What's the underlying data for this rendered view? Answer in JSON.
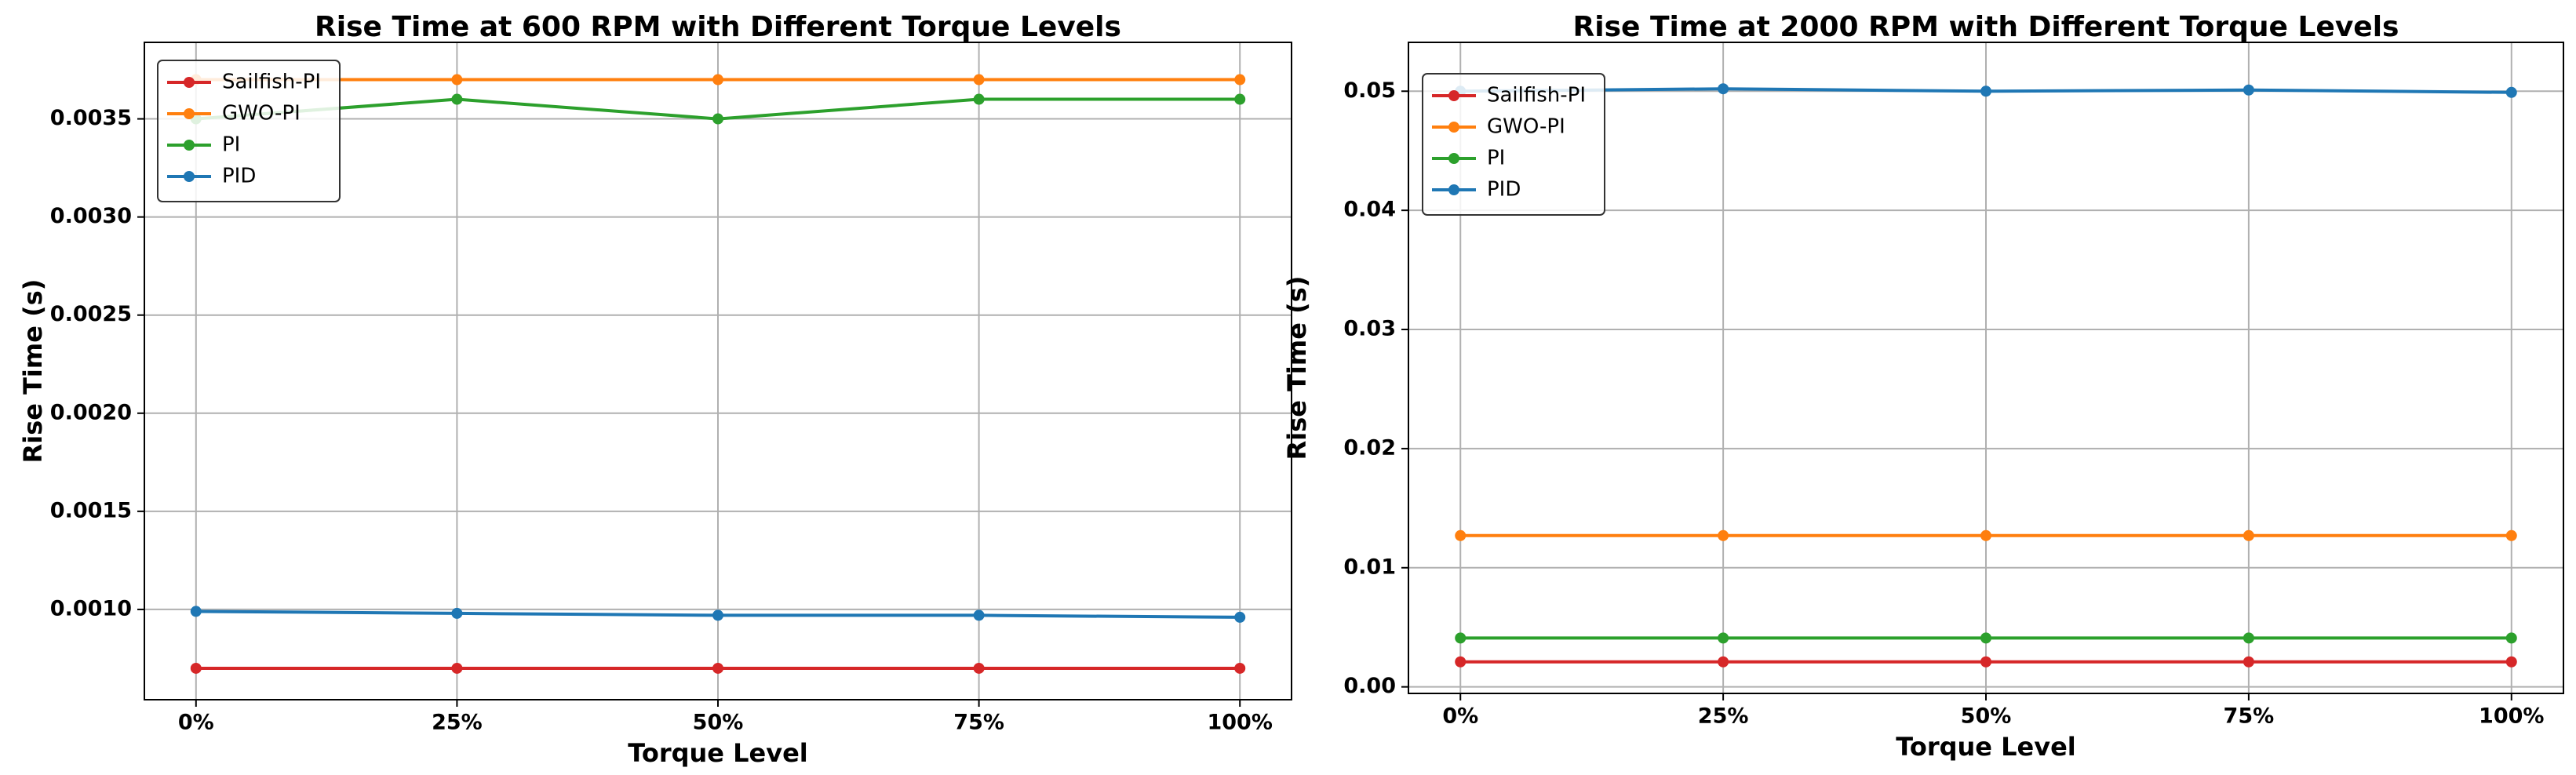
{
  "chart_data": [
    {
      "type": "line",
      "title": "Rise Time at 600 RPM with Different Torque Levels",
      "x_label": "Torque Level",
      "y_label": "Rise Time (s)",
      "categories": [
        "0%",
        "25%",
        "50%",
        "75%",
        "100%"
      ],
      "series": [
        {
          "name": "Sailfish-PI",
          "color": "#d62728",
          "values": [
            0.0007,
            0.0007,
            0.0007,
            0.0007,
            0.0007
          ]
        },
        {
          "name": "GWO-PI",
          "color": "#ff7f0e",
          "values": [
            0.0037,
            0.0037,
            0.0037,
            0.0037,
            0.0037
          ]
        },
        {
          "name": "PI",
          "color": "#2ca02c",
          "values": [
            0.0035,
            0.0036,
            0.0035,
            0.0036,
            0.0036
          ]
        },
        {
          "name": "PID",
          "color": "#1f77b4",
          "values": [
            0.00099,
            0.00098,
            0.00097,
            0.00097,
            0.00096
          ]
        }
      ],
      "ylim": [
        0.00054,
        0.00389
      ],
      "yticks": [
        {
          "value": 0.001,
          "label": "0.0010"
        },
        {
          "value": 0.0015,
          "label": "0.0015"
        },
        {
          "value": 0.002,
          "label": "0.0020"
        },
        {
          "value": 0.0025,
          "label": "0.0025"
        },
        {
          "value": 0.003,
          "label": "0.0030"
        },
        {
          "value": 0.0035,
          "label": "0.0035"
        }
      ],
      "grid": true,
      "legend": "upper left"
    },
    {
      "type": "line",
      "title": "Rise Time at 2000 RPM with Different Torque Levels",
      "x_label": "Torque Level",
      "y_label": "Rise Time (s)",
      "categories": [
        "0%",
        "25%",
        "50%",
        "75%",
        "100%"
      ],
      "series": [
        {
          "name": "Sailfish-PI",
          "color": "#d62728",
          "values": [
            0.0021,
            0.0021,
            0.0021,
            0.0021,
            0.0021
          ]
        },
        {
          "name": "GWO-PI",
          "color": "#ff7f0e",
          "values": [
            0.0127,
            0.0127,
            0.0127,
            0.0127,
            0.0127
          ]
        },
        {
          "name": "PI",
          "color": "#2ca02c",
          "values": [
            0.0041,
            0.0041,
            0.0041,
            0.0041,
            0.0041
          ]
        },
        {
          "name": "PID",
          "color": "#1f77b4",
          "values": [
            0.05,
            0.0502,
            0.05,
            0.0501,
            0.0499
          ]
        }
      ],
      "ylim": [
        -0.00055,
        0.0541
      ],
      "yticks": [
        {
          "value": 0,
          "label": "0.00"
        },
        {
          "value": 0.01,
          "label": "0.01"
        },
        {
          "value": 0.02,
          "label": "0.02"
        },
        {
          "value": 0.03,
          "label": "0.03"
        },
        {
          "value": 0.04,
          "label": "0.04"
        },
        {
          "value": 0.05,
          "label": "0.05"
        }
      ],
      "grid": true,
      "legend": "upper left"
    }
  ]
}
